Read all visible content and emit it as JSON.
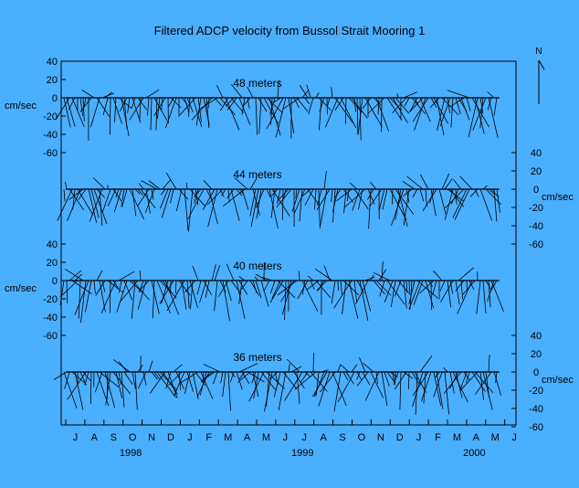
{
  "chart_data": {
    "type": "stick-plot",
    "title": "Filtered ADCP velocity from Bussol Strait Mooring 1",
    "ylabel": "cm/sec",
    "north_label": "N",
    "ylim": [
      -60,
      40
    ],
    "yticks": [
      40,
      20,
      0,
      -20,
      -40,
      -60
    ],
    "tick_labels": [
      "40",
      "20",
      "0",
      "-20",
      "-40",
      "-60"
    ],
    "months": [
      "J",
      "A",
      "S",
      "O",
      "N",
      "D",
      "J",
      "F",
      "M",
      "A",
      "M",
      "J",
      "J",
      "A",
      "S",
      "O",
      "N",
      "D",
      "J",
      "F",
      "M",
      "A",
      "M",
      "J"
    ],
    "years": [
      {
        "label": "1998",
        "month_index": 3
      },
      {
        "label": "1999",
        "month_index": 12
      },
      {
        "label": "2000",
        "month_index": 21
      }
    ],
    "panels": [
      {
        "label": "48 meters",
        "axis_side": "left"
      },
      {
        "label": "44 meters",
        "axis_side": "right"
      },
      {
        "label": "40 meters",
        "axis_side": "left"
      },
      {
        "label": "36 meters",
        "axis_side": "right"
      }
    ]
  },
  "colors": {
    "background": "#4aafff",
    "ink": "#000000"
  }
}
